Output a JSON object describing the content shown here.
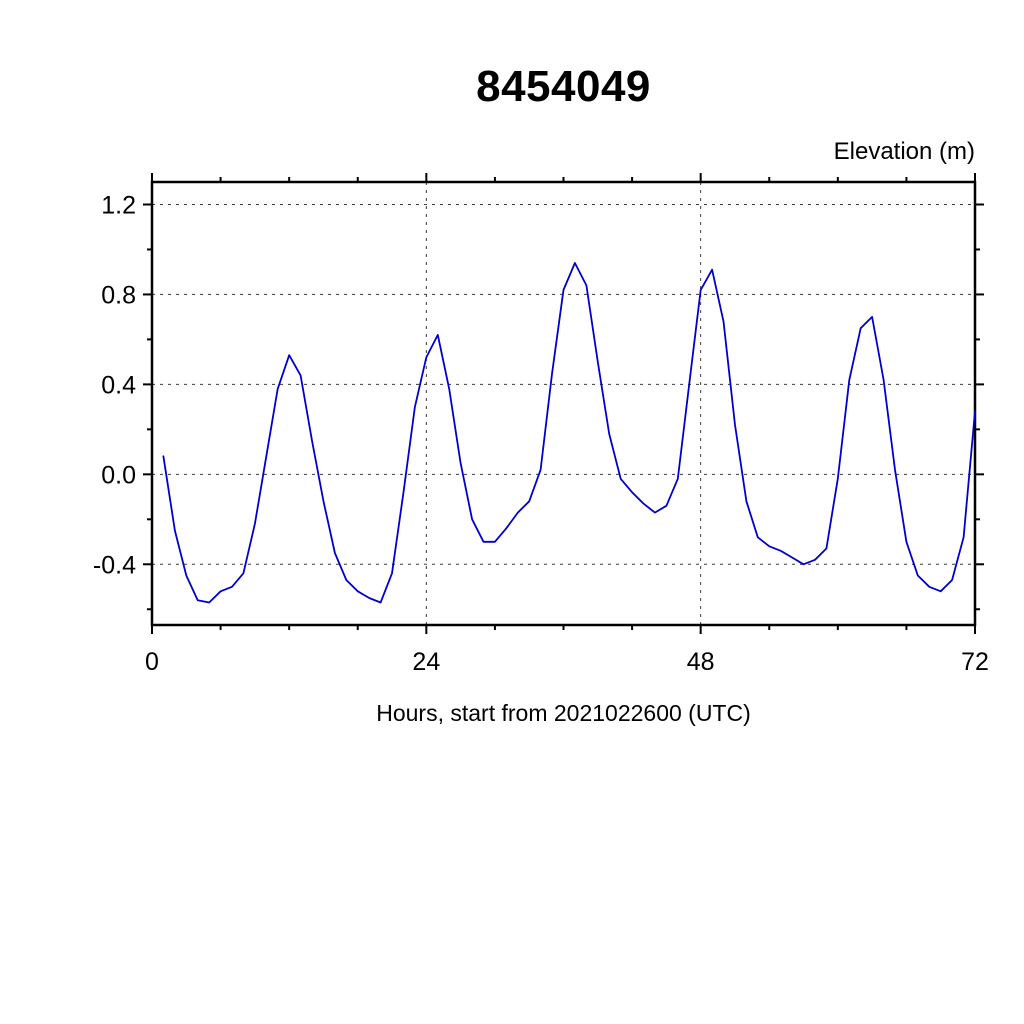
{
  "title": "8454049",
  "y_unit_label": "Elevation (m)",
  "x_axis_title": "Hours, start from 2021022600 (UTC)",
  "chart_data": {
    "type": "line",
    "title": "8454049",
    "xlabel": "Hours, start from 2021022600 (UTC)",
    "ylabel": "Elevation (m)",
    "xlim": [
      0,
      72
    ],
    "ylim": [
      -0.67,
      1.3
    ],
    "xticks_major": [
      0,
      24,
      48,
      72
    ],
    "xticks_minor_interval": 6,
    "yticks_major": [
      -0.4,
      0.0,
      0.4,
      0.8,
      1.2
    ],
    "yticks_minor_interval": 0.2,
    "yticks_minor_start": -0.6,
    "yticks_minor_end": 1.2,
    "grid_x": [
      24,
      48
    ],
    "grid_y": [
      -0.4,
      0.0,
      0.4,
      0.8,
      1.2
    ],
    "grid_on": true,
    "legend_position": "none",
    "line_color": "#0000cc",
    "series": [
      {
        "name": "elevation",
        "x": [
          1,
          2,
          3,
          4,
          5,
          6,
          7,
          8,
          9,
          10,
          11,
          12,
          13,
          14,
          15,
          16,
          17,
          18,
          19,
          20,
          21,
          22,
          23,
          24,
          25,
          26,
          27,
          28,
          29,
          30,
          31,
          32,
          33,
          34,
          35,
          36,
          37,
          38,
          39,
          40,
          41,
          42,
          43,
          44,
          45,
          46,
          47,
          48,
          49,
          50,
          51,
          52,
          53,
          54,
          55,
          56,
          57,
          58,
          59,
          60,
          61,
          62,
          63,
          64,
          65,
          66,
          67,
          68,
          69,
          70,
          71,
          72
        ],
        "y": [
          0.08,
          -0.25,
          -0.45,
          -0.56,
          -0.57,
          -0.52,
          -0.5,
          -0.44,
          -0.22,
          0.08,
          0.38,
          0.53,
          0.44,
          0.15,
          -0.12,
          -0.35,
          -0.47,
          -0.52,
          -0.55,
          -0.57,
          -0.44,
          -0.08,
          0.3,
          0.52,
          0.62,
          0.38,
          0.05,
          -0.2,
          -0.3,
          -0.3,
          -0.24,
          -0.17,
          -0.12,
          0.02,
          0.45,
          0.82,
          0.94,
          0.84,
          0.5,
          0.18,
          -0.02,
          -0.08,
          -0.13,
          -0.17,
          -0.14,
          -0.02,
          0.4,
          0.82,
          0.91,
          0.68,
          0.22,
          -0.12,
          -0.28,
          -0.32,
          -0.34,
          -0.37,
          -0.4,
          -0.38,
          -0.33,
          -0.02,
          0.42,
          0.65,
          0.7,
          0.42,
          0.02,
          -0.3,
          -0.45,
          -0.5,
          -0.52,
          -0.47,
          -0.28,
          0.28
        ]
      }
    ]
  }
}
